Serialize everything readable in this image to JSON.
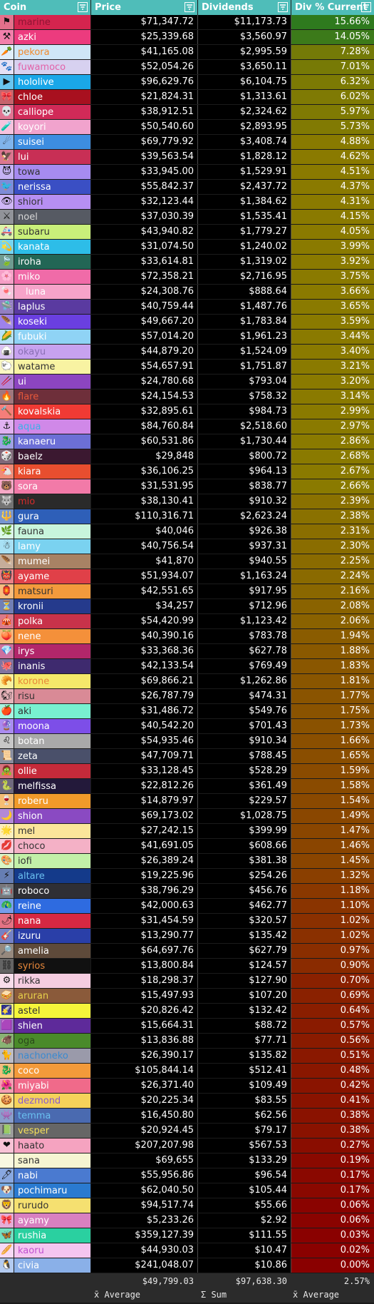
{
  "headers": {
    "coin": "Coin",
    "price": "Price",
    "dividends": "Dividends",
    "div": "Div % Current",
    "filter_icon": "filter-icon"
  },
  "rows": [
    {
      "coin": "marine",
      "price": "$71,347.72",
      "dividends": "$11,173.73",
      "div": "15.66%",
      "pct": 15.66,
      "bg": "#d4244e",
      "fg": "#8f1533",
      "icon": "⚑"
    },
    {
      "coin": "azki",
      "price": "$25,339.68",
      "dividends": "$3,560.97",
      "div": "14.05%",
      "pct": 14.05,
      "bg": "#ec3b7e",
      "fg": "#ffffff",
      "icon": "⚒"
    },
    {
      "coin": "pekora",
      "price": "$41,165.08",
      "dividends": "$2,995.59",
      "div": "7.28%",
      "pct": 7.28,
      "bg": "#cfe6f7",
      "fg": "#f08a2c",
      "icon": "🥕"
    },
    {
      "coin": "fuwamoco",
      "price": "$52,054.26",
      "dividends": "$3,650.11",
      "div": "7.01%",
      "pct": 7.01,
      "bg": "#d7d1f0",
      "fg": "#e262a8",
      "icon": "🐾"
    },
    {
      "coin": "hololive",
      "price": "$96,629.76",
      "dividends": "$6,104.75",
      "div": "6.32%",
      "pct": 6.32,
      "bg": "#1aa7e8",
      "fg": "#ffffff",
      "icon": "▶"
    },
    {
      "coin": "chloe",
      "price": "$21,824.31",
      "dividends": "$1,313.61",
      "div": "6.02%",
      "pct": 6.02,
      "bg": "#a8101f",
      "fg": "#ffffff",
      "icon": "🎀"
    },
    {
      "coin": "calliope",
      "price": "$38,912.51",
      "dividends": "$2,324.62",
      "div": "5.97%",
      "pct": 5.97,
      "bg": "#d12a58",
      "fg": "#ffffff",
      "icon": "💀"
    },
    {
      "coin": "koyori",
      "price": "$50,540.60",
      "dividends": "$2,893.95",
      "div": "5.73%",
      "pct": 5.73,
      "bg": "#f1a3cd",
      "fg": "#ffffff",
      "icon": "🧪"
    },
    {
      "coin": "suisei",
      "price": "$69,779.92",
      "dividends": "$3,408.74",
      "div": "4.88%",
      "pct": 4.88,
      "bg": "#3d8de0",
      "fg": "#ffffff",
      "icon": "☄"
    },
    {
      "coin": "lui",
      "price": "$39,563.54",
      "dividends": "$1,828.12",
      "div": "4.62%",
      "pct": 4.62,
      "bg": "#c82f55",
      "fg": "#ffffff",
      "icon": "🦅"
    },
    {
      "coin": "towa",
      "price": "$33,945.00",
      "dividends": "$1,529.91",
      "div": "4.51%",
      "pct": 4.51,
      "bg": "#a68bf0",
      "fg": "#333333",
      "icon": "😈"
    },
    {
      "coin": "nerissa",
      "price": "$55,842.37",
      "dividends": "$2,437.72",
      "div": "4.37%",
      "pct": 4.37,
      "bg": "#3a4fc4",
      "fg": "#ffffff",
      "icon": "🐦"
    },
    {
      "coin": "shiori",
      "price": "$32,123.44",
      "dividends": "$1,384.62",
      "div": "4.31%",
      "pct": 4.31,
      "bg": "#b68ff2",
      "fg": "#333333",
      "icon": "👁"
    },
    {
      "coin": "noel",
      "price": "$37,030.39",
      "dividends": "$1,535.41",
      "div": "4.15%",
      "pct": 4.15,
      "bg": "#565a63",
      "fg": "#d8d8d8",
      "icon": "⚔"
    },
    {
      "coin": "subaru",
      "price": "$43,940.82",
      "dividends": "$1,779.27",
      "div": "4.05%",
      "pct": 4.05,
      "bg": "#c9ef7a",
      "fg": "#333333",
      "icon": "🚑"
    },
    {
      "coin": "kanata",
      "price": "$31,074.50",
      "dividends": "$1,240.02",
      "div": "3.99%",
      "pct": 3.99,
      "bg": "#2dbde8",
      "fg": "#ffffff",
      "icon": "💫"
    },
    {
      "coin": "iroha",
      "price": "$33,614.81",
      "dividends": "$1,319.02",
      "div": "3.92%",
      "pct": 3.92,
      "bg": "#226655",
      "fg": "#ffffff",
      "icon": "🍃"
    },
    {
      "coin": "miko",
      "price": "$72,358.21",
      "dividends": "$2,716.95",
      "div": "3.75%",
      "pct": 3.75,
      "bg": "#f06ba8",
      "fg": "#ffffff",
      "icon": "🌸"
    },
    {
      "coin": "luna",
      "price": "$24,308.76",
      "dividends": "$888.64",
      "div": "3.66%",
      "pct": 3.66,
      "bg": "#f6a3c9",
      "fg": "#ffffff",
      "icon": "🍬",
      "indent": true
    },
    {
      "coin": "laplus",
      "price": "$40,759.44",
      "dividends": "$1,487.76",
      "div": "3.65%",
      "pct": 3.65,
      "bg": "#5a3aa0",
      "fg": "#ffffff",
      "icon": "🛸"
    },
    {
      "coin": "koseki",
      "price": "$49,667.20",
      "dividends": "$1,783.84",
      "div": "3.59%",
      "pct": 3.59,
      "bg": "#6a3fe0",
      "fg": "#ffffff",
      "icon": "🪶"
    },
    {
      "coin": "fubuki",
      "price": "$57,014.20",
      "dividends": "$1,961.23",
      "div": "3.44%",
      "pct": 3.44,
      "bg": "#8fd3f5",
      "fg": "#ffffff",
      "icon": "🌽"
    },
    {
      "coin": "okayu",
      "price": "$44,879.20",
      "dividends": "$1,524.09",
      "div": "3.40%",
      "pct": 3.4,
      "bg": "#c7a2ef",
      "fg": "#8a70b5",
      "icon": "🍙"
    },
    {
      "coin": "watame",
      "price": "$54,657.91",
      "dividends": "$1,751.87",
      "div": "3.21%",
      "pct": 3.21,
      "bg": "#f8f3a2",
      "fg": "#333333",
      "icon": "🐑"
    },
    {
      "coin": "ui",
      "price": "$24,780.68",
      "dividends": "$793.04",
      "div": "3.20%",
      "pct": 3.2,
      "bg": "#8c45c0",
      "fg": "#ffffff",
      "icon": "🥢"
    },
    {
      "coin": "flare",
      "price": "$24,154.53",
      "dividends": "$758.32",
      "div": "3.14%",
      "pct": 3.14,
      "bg": "#6e2f3a",
      "fg": "#e8583a",
      "icon": "🔥"
    },
    {
      "coin": "kovalskia",
      "price": "$32,895.61",
      "dividends": "$984.73",
      "div": "2.99%",
      "pct": 2.99,
      "bg": "#f03a34",
      "fg": "#ffffff",
      "icon": "🔨"
    },
    {
      "coin": "aqua",
      "price": "$84,760.84",
      "dividends": "$2,518.60",
      "div": "2.97%",
      "pct": 2.97,
      "bg": "#d088e8",
      "fg": "#3ab0e8",
      "icon": "⚓"
    },
    {
      "coin": "kanaeru",
      "price": "$60,531.86",
      "dividends": "$1,730.44",
      "div": "2.86%",
      "pct": 2.86,
      "bg": "#6c6fd6",
      "fg": "#ffffff",
      "icon": "🐉"
    },
    {
      "coin": "baelz",
      "price": "$29,848",
      "dividends": "$800.72",
      "div": "2.68%",
      "pct": 2.68,
      "bg": "#3b1830",
      "fg": "#ffffff",
      "icon": "🎲"
    },
    {
      "coin": "kiara",
      "price": "$36,106.25",
      "dividends": "$964.13",
      "div": "2.67%",
      "pct": 2.67,
      "bg": "#e84e2f",
      "fg": "#ffffff",
      "icon": "🐔"
    },
    {
      "coin": "sora",
      "price": "$31,531.95",
      "dividends": "$838.77",
      "div": "2.66%",
      "pct": 2.66,
      "bg": "#f27aa8",
      "fg": "#ffffff",
      "icon": "🐻"
    },
    {
      "coin": "mio",
      "price": "$38,130.41",
      "dividends": "$910.32",
      "div": "2.39%",
      "pct": 2.39,
      "bg": "#2a2a2a",
      "fg": "#d52b2b",
      "icon": "🐺"
    },
    {
      "coin": "gura",
      "price": "$110,316.71",
      "dividends": "$2,623.24",
      "div": "2.38%",
      "pct": 2.38,
      "bg": "#2e5fb8",
      "fg": "#ffffff",
      "icon": "🔱"
    },
    {
      "coin": "fauna",
      "price": "$40,046",
      "dividends": "$926.38",
      "div": "2.31%",
      "pct": 2.31,
      "bg": "#c8f5dc",
      "fg": "#333333",
      "icon": "🌿"
    },
    {
      "coin": "lamy",
      "price": "$40,756.54",
      "dividends": "$937.31",
      "div": "2.30%",
      "pct": 2.3,
      "bg": "#7ad2f0",
      "fg": "#ffffff",
      "icon": "☃"
    },
    {
      "coin": "mumei",
      "price": "$41,870",
      "dividends": "$940.55",
      "div": "2.25%",
      "pct": 2.25,
      "bg": "#a88264",
      "fg": "#ffffff",
      "icon": "🪶"
    },
    {
      "coin": "ayame",
      "price": "$51,934.07",
      "dividends": "$1,163.24",
      "div": "2.24%",
      "pct": 2.24,
      "bg": "#e04048",
      "fg": "#ffffff",
      "icon": "👹"
    },
    {
      "coin": "matsuri",
      "price": "$42,551.65",
      "dividends": "$917.95",
      "div": "2.16%",
      "pct": 2.16,
      "bg": "#f39a3c",
      "fg": "#333333",
      "icon": "🏮"
    },
    {
      "coin": "kronii",
      "price": "$34,257",
      "dividends": "$712.96",
      "div": "2.08%",
      "pct": 2.08,
      "bg": "#253a8c",
      "fg": "#ffffff",
      "icon": "⏳"
    },
    {
      "coin": "polka",
      "price": "$54,420.99",
      "dividends": "$1,123.42",
      "div": "2.06%",
      "pct": 2.06,
      "bg": "#c8324a",
      "fg": "#ffffff",
      "icon": "🎪"
    },
    {
      "coin": "nene",
      "price": "$40,390.16",
      "dividends": "$783.78",
      "div": "1.94%",
      "pct": 1.94,
      "bg": "#f4903a",
      "fg": "#ffffff",
      "icon": "🍑"
    },
    {
      "coin": "irys",
      "price": "$33,368.36",
      "dividends": "$627.78",
      "div": "1.88%",
      "pct": 1.88,
      "bg": "#b2266a",
      "fg": "#ffffff",
      "icon": "💎"
    },
    {
      "coin": "inanis",
      "price": "$42,133.54",
      "dividends": "$769.49",
      "div": "1.83%",
      "pct": 1.83,
      "bg": "#3e2a6e",
      "fg": "#ffffff",
      "icon": "🐙"
    },
    {
      "coin": "korone",
      "price": "$69,866.21",
      "dividends": "$1,262.86",
      "div": "1.81%",
      "pct": 1.81,
      "bg": "#f5e86a",
      "fg": "#e8883a",
      "icon": "🥐"
    },
    {
      "coin": "risu",
      "price": "$26,787.79",
      "dividends": "$474.31",
      "div": "1.77%",
      "pct": 1.77,
      "bg": "#d98a96",
      "fg": "#333333",
      "icon": "🐿"
    },
    {
      "coin": "aki",
      "price": "$31,486.72",
      "dividends": "$549.76",
      "div": "1.75%",
      "pct": 1.75,
      "bg": "#78f0d0",
      "fg": "#333333",
      "icon": "🍎"
    },
    {
      "coin": "moona",
      "price": "$40,542.20",
      "dividends": "$701.43",
      "div": "1.73%",
      "pct": 1.73,
      "bg": "#7d4ee8",
      "fg": "#ffffff",
      "icon": "🔮"
    },
    {
      "coin": "botan",
      "price": "$54,935.46",
      "dividends": "$910.34",
      "div": "1.66%",
      "pct": 1.66,
      "bg": "#a9a9a9",
      "fg": "#ffffff",
      "icon": "♌"
    },
    {
      "coin": "zeta",
      "price": "$47,709.71",
      "dividends": "$788.45",
      "div": "1.65%",
      "pct": 1.65,
      "bg": "#4a506a",
      "fg": "#ffffff",
      "icon": "📜"
    },
    {
      "coin": "ollie",
      "price": "$33,128.45",
      "dividends": "$528.29",
      "div": "1.59%",
      "pct": 1.59,
      "bg": "#c52a3a",
      "fg": "#ffffff",
      "icon": "🧟"
    },
    {
      "coin": "melfissa",
      "price": "$22,812.26",
      "dividends": "$361.49",
      "div": "1.58%",
      "pct": 1.58,
      "bg": "#23193a",
      "fg": "#ffffff",
      "icon": "🐍"
    },
    {
      "coin": "roberu",
      "price": "$14,879.97",
      "dividends": "$229.57",
      "div": "1.54%",
      "pct": 1.54,
      "bg": "#f19a2a",
      "fg": "#ffffff",
      "icon": "🍷"
    },
    {
      "coin": "shion",
      "price": "$69,173.02",
      "dividends": "$1,028.75",
      "div": "1.49%",
      "pct": 1.49,
      "bg": "#8a4ac2",
      "fg": "#ffffff",
      "icon": "🌙"
    },
    {
      "coin": "mel",
      "price": "$27,242.15",
      "dividends": "$399.99",
      "div": "1.47%",
      "pct": 1.47,
      "bg": "#fbe59a",
      "fg": "#333333",
      "icon": "🌟"
    },
    {
      "coin": "choco",
      "price": "$41,691.05",
      "dividends": "$608.66",
      "div": "1.46%",
      "pct": 1.46,
      "bg": "#f4b1c6",
      "fg": "#333333",
      "icon": "💋"
    },
    {
      "coin": "iofi",
      "price": "$26,389.24",
      "dividends": "$381.38",
      "div": "1.45%",
      "pct": 1.45,
      "bg": "#c2f0a8",
      "fg": "#333333",
      "icon": "🎨"
    },
    {
      "coin": "altare",
      "price": "$19,225.96",
      "dividends": "$254.26",
      "div": "1.32%",
      "pct": 1.32,
      "bg": "#143a8a",
      "fg": "#6ac0f0",
      "icon": "⚡"
    },
    {
      "coin": "roboco",
      "price": "$38,796.29",
      "dividends": "$456.76",
      "div": "1.18%",
      "pct": 1.18,
      "bg": "#2f2f35",
      "fg": "#ffffff",
      "icon": "🤖"
    },
    {
      "coin": "reine",
      "price": "$42,000.63",
      "dividends": "$462.77",
      "div": "1.10%",
      "pct": 1.1,
      "bg": "#2e6be0",
      "fg": "#ffffff",
      "icon": "🦚"
    },
    {
      "coin": "nana",
      "price": "$31,454.59",
      "dividends": "$320.57",
      "div": "1.02%",
      "pct": 1.02,
      "bg": "#d62842",
      "fg": "#ffffff",
      "icon": "🌶"
    },
    {
      "coin": "izuru",
      "price": "$13,290.77",
      "dividends": "$135.42",
      "div": "1.02%",
      "pct": 1.02,
      "bg": "#2a3fa8",
      "fg": "#ffffff",
      "icon": "🎸"
    },
    {
      "coin": "amelia",
      "price": "$64,697.76",
      "dividends": "$627.79",
      "div": "0.97%",
      "pct": 0.97,
      "bg": "#5e4a3a",
      "fg": "#ffffff",
      "icon": "🔎"
    },
    {
      "coin": "syrios",
      "price": "$13,800.84",
      "dividends": "$124.57",
      "div": "0.90%",
      "pct": 0.9,
      "bg": "#111111",
      "fg": "#e8883a",
      "icon": "⛓"
    },
    {
      "coin": "rikka",
      "price": "$18,298.37",
      "dividends": "$127.90",
      "div": "0.70%",
      "pct": 0.7,
      "bg": "#f5cde0",
      "fg": "#333333",
      "icon": "⚙"
    },
    {
      "coin": "aruran",
      "price": "$15,497.93",
      "dividends": "$107.20",
      "div": "0.69%",
      "pct": 0.69,
      "bg": "#8a5a3a",
      "fg": "#e8d04a",
      "icon": "🥪"
    },
    {
      "coin": "astel",
      "price": "$20,826.42",
      "dividends": "$132.42",
      "div": "0.64%",
      "pct": 0.64,
      "bg": "#f5f53a",
      "fg": "#333333",
      "icon": "🌠"
    },
    {
      "coin": "shien",
      "price": "$15,664.31",
      "dividends": "$88.72",
      "div": "0.57%",
      "pct": 0.57,
      "bg": "#5e2a9a",
      "fg": "#ffffff",
      "icon": "🟪"
    },
    {
      "coin": "oga",
      "price": "$13,836.88",
      "dividends": "$77.71",
      "div": "0.56%",
      "pct": 0.56,
      "bg": "#4a8a2a",
      "fg": "#2a4a1a",
      "icon": "🐗"
    },
    {
      "coin": "nachoneko",
      "price": "$26,390.17",
      "dividends": "$135.82",
      "div": "0.51%",
      "pct": 0.51,
      "bg": "#9a9aaa",
      "fg": "#3a8ad0",
      "icon": "🐈"
    },
    {
      "coin": "coco",
      "price": "$105,844.14",
      "dividends": "$512.41",
      "div": "0.48%",
      "pct": 0.48,
      "bg": "#f39a3a",
      "fg": "#ffffff",
      "icon": "🐉"
    },
    {
      "coin": "miyabi",
      "price": "$26,371.40",
      "dividends": "$109.49",
      "div": "0.42%",
      "pct": 0.42,
      "bg": "#f06a8a",
      "fg": "#ffffff",
      "icon": "🌺"
    },
    {
      "coin": "dezmond",
      "price": "$20,225.34",
      "dividends": "$83.55",
      "div": "0.41%",
      "pct": 0.41,
      "bg": "#f5d25a",
      "fg": "#8a5ad0",
      "icon": "🍪"
    },
    {
      "coin": "temma",
      "price": "$16,450.80",
      "dividends": "$62.56",
      "div": "0.38%",
      "pct": 0.38,
      "bg": "#4a6ab0",
      "fg": "#6ac0f0",
      "icon": "👾"
    },
    {
      "coin": "vesper",
      "price": "$20,924.45",
      "dividends": "$79.17",
      "div": "0.38%",
      "pct": 0.38,
      "bg": "#666666",
      "fg": "#f5e05a",
      "icon": "📗"
    },
    {
      "coin": "haato",
      "price": "$207,207.98",
      "dividends": "$567.53",
      "div": "0.27%",
      "pct": 0.27,
      "bg": "#f5a3c0",
      "fg": "#333333",
      "icon": "❤"
    },
    {
      "coin": "sana",
      "price": "$69,655",
      "dividends": "$133.29",
      "div": "0.19%",
      "pct": 0.19,
      "bg": "#f6f5d2",
      "fg": "#333333",
      "icon": ""
    },
    {
      "coin": "nabi",
      "price": "$55,956.86",
      "dividends": "$96.54",
      "div": "0.17%",
      "pct": 0.17,
      "bg": "#4a7ad0",
      "fg": "#ffffff",
      "icon": "🖊"
    },
    {
      "coin": "pochimaru",
      "price": "$62,040.50",
      "dividends": "$105.44",
      "div": "0.17%",
      "pct": 0.17,
      "bg": "#2a7ad0",
      "fg": "#ffffff",
      "icon": "🐶"
    },
    {
      "coin": "rurudo",
      "price": "$94,517.74",
      "dividends": "$55.66",
      "div": "0.06%",
      "pct": 0.06,
      "bg": "#f5e070",
      "fg": "#333333",
      "icon": "🦁"
    },
    {
      "coin": "ayamy",
      "price": "$5,233.26",
      "dividends": "$2.92",
      "div": "0.06%",
      "pct": 0.06,
      "bg": "#d880c0",
      "fg": "#ffffff",
      "icon": "🎀"
    },
    {
      "coin": "rushia",
      "price": "$359,127.39",
      "dividends": "$111.55",
      "div": "0.03%",
      "pct": 0.03,
      "bg": "#2ad0a0",
      "fg": "#ffffff",
      "icon": "🦋"
    },
    {
      "coin": "kaoru",
      "price": "$44,930.03",
      "dividends": "$10.47",
      "div": "0.02%",
      "pct": 0.02,
      "bg": "#f5c5f0",
      "fg": "#c050d0",
      "icon": "🥖"
    },
    {
      "coin": "civia",
      "price": "$241,048.07",
      "dividends": "$10.86",
      "div": "0.00%",
      "pct": 0.0,
      "bg": "#8ab0e8",
      "fg": "#ffffff",
      "icon": "🐧"
    }
  ],
  "footer": {
    "price_value": "$49,799.03",
    "dividends_value": "$97,638.30",
    "div_value": "2.57%",
    "price_label": "x̄ Average",
    "dividends_label": "Σ Sum",
    "div_label": "x̄ Average"
  },
  "colors": {
    "header": "#4fbdb9",
    "high": "#2e7a1e",
    "mid": "#8a7a00",
    "low": "#8a0000"
  }
}
